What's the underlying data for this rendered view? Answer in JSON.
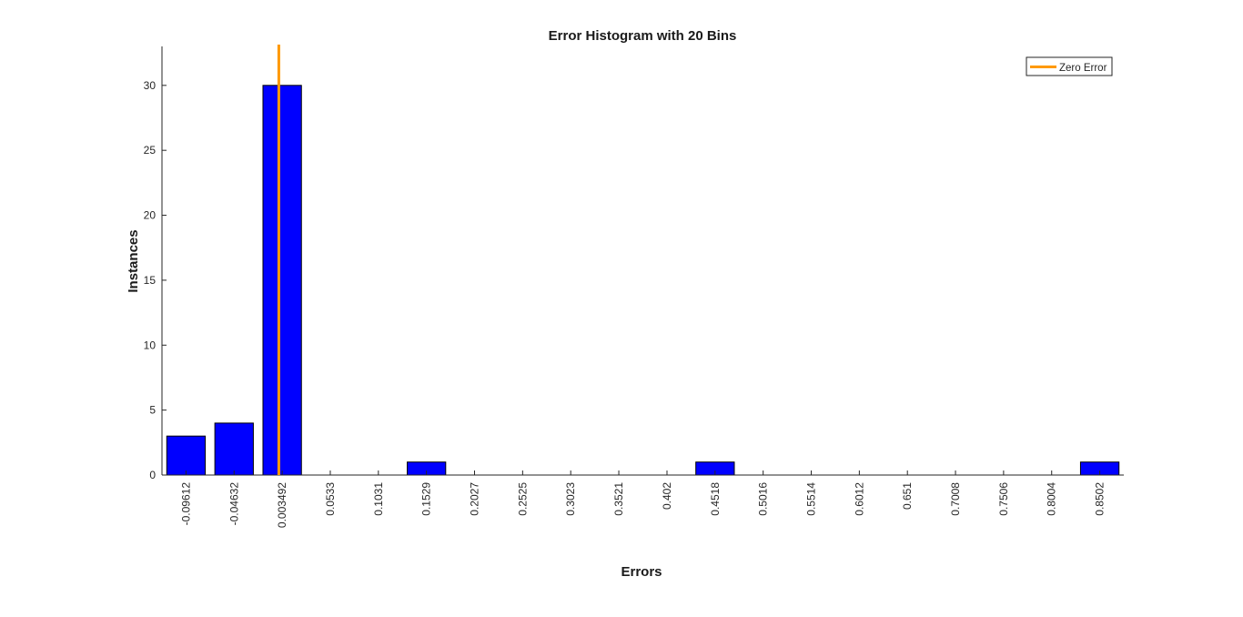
{
  "chart_data": {
    "type": "bar",
    "title": "Error Histogram with 20 Bins",
    "xlabel": "Errors",
    "ylabel": "Instances",
    "categories": [
      "-0.09612",
      "-0.04632",
      "0.003492",
      "0.0533",
      "0.1031",
      "0.1529",
      "0.2027",
      "0.2525",
      "0.3023",
      "0.3521",
      "0.402",
      "0.4518",
      "0.5016",
      "0.5514",
      "0.6012",
      "0.651",
      "0.7008",
      "0.7506",
      "0.8004",
      "0.8502"
    ],
    "values": [
      3,
      4,
      30,
      0,
      0,
      1,
      0,
      0,
      0,
      0,
      0,
      1,
      0,
      0,
      0,
      0,
      0,
      0,
      0,
      1
    ],
    "ylim": [
      0,
      33
    ],
    "yticks": [
      0,
      5,
      10,
      15,
      20,
      25,
      30
    ],
    "zero_error_x": 0,
    "legend": {
      "entries": [
        "Zero Error"
      ],
      "placement": "top-right"
    },
    "grid": false,
    "colors": {
      "bar_fill": "#0000ff",
      "bar_edge": "#000000",
      "zero_line": "#ff9900",
      "axis": "#262626"
    }
  }
}
